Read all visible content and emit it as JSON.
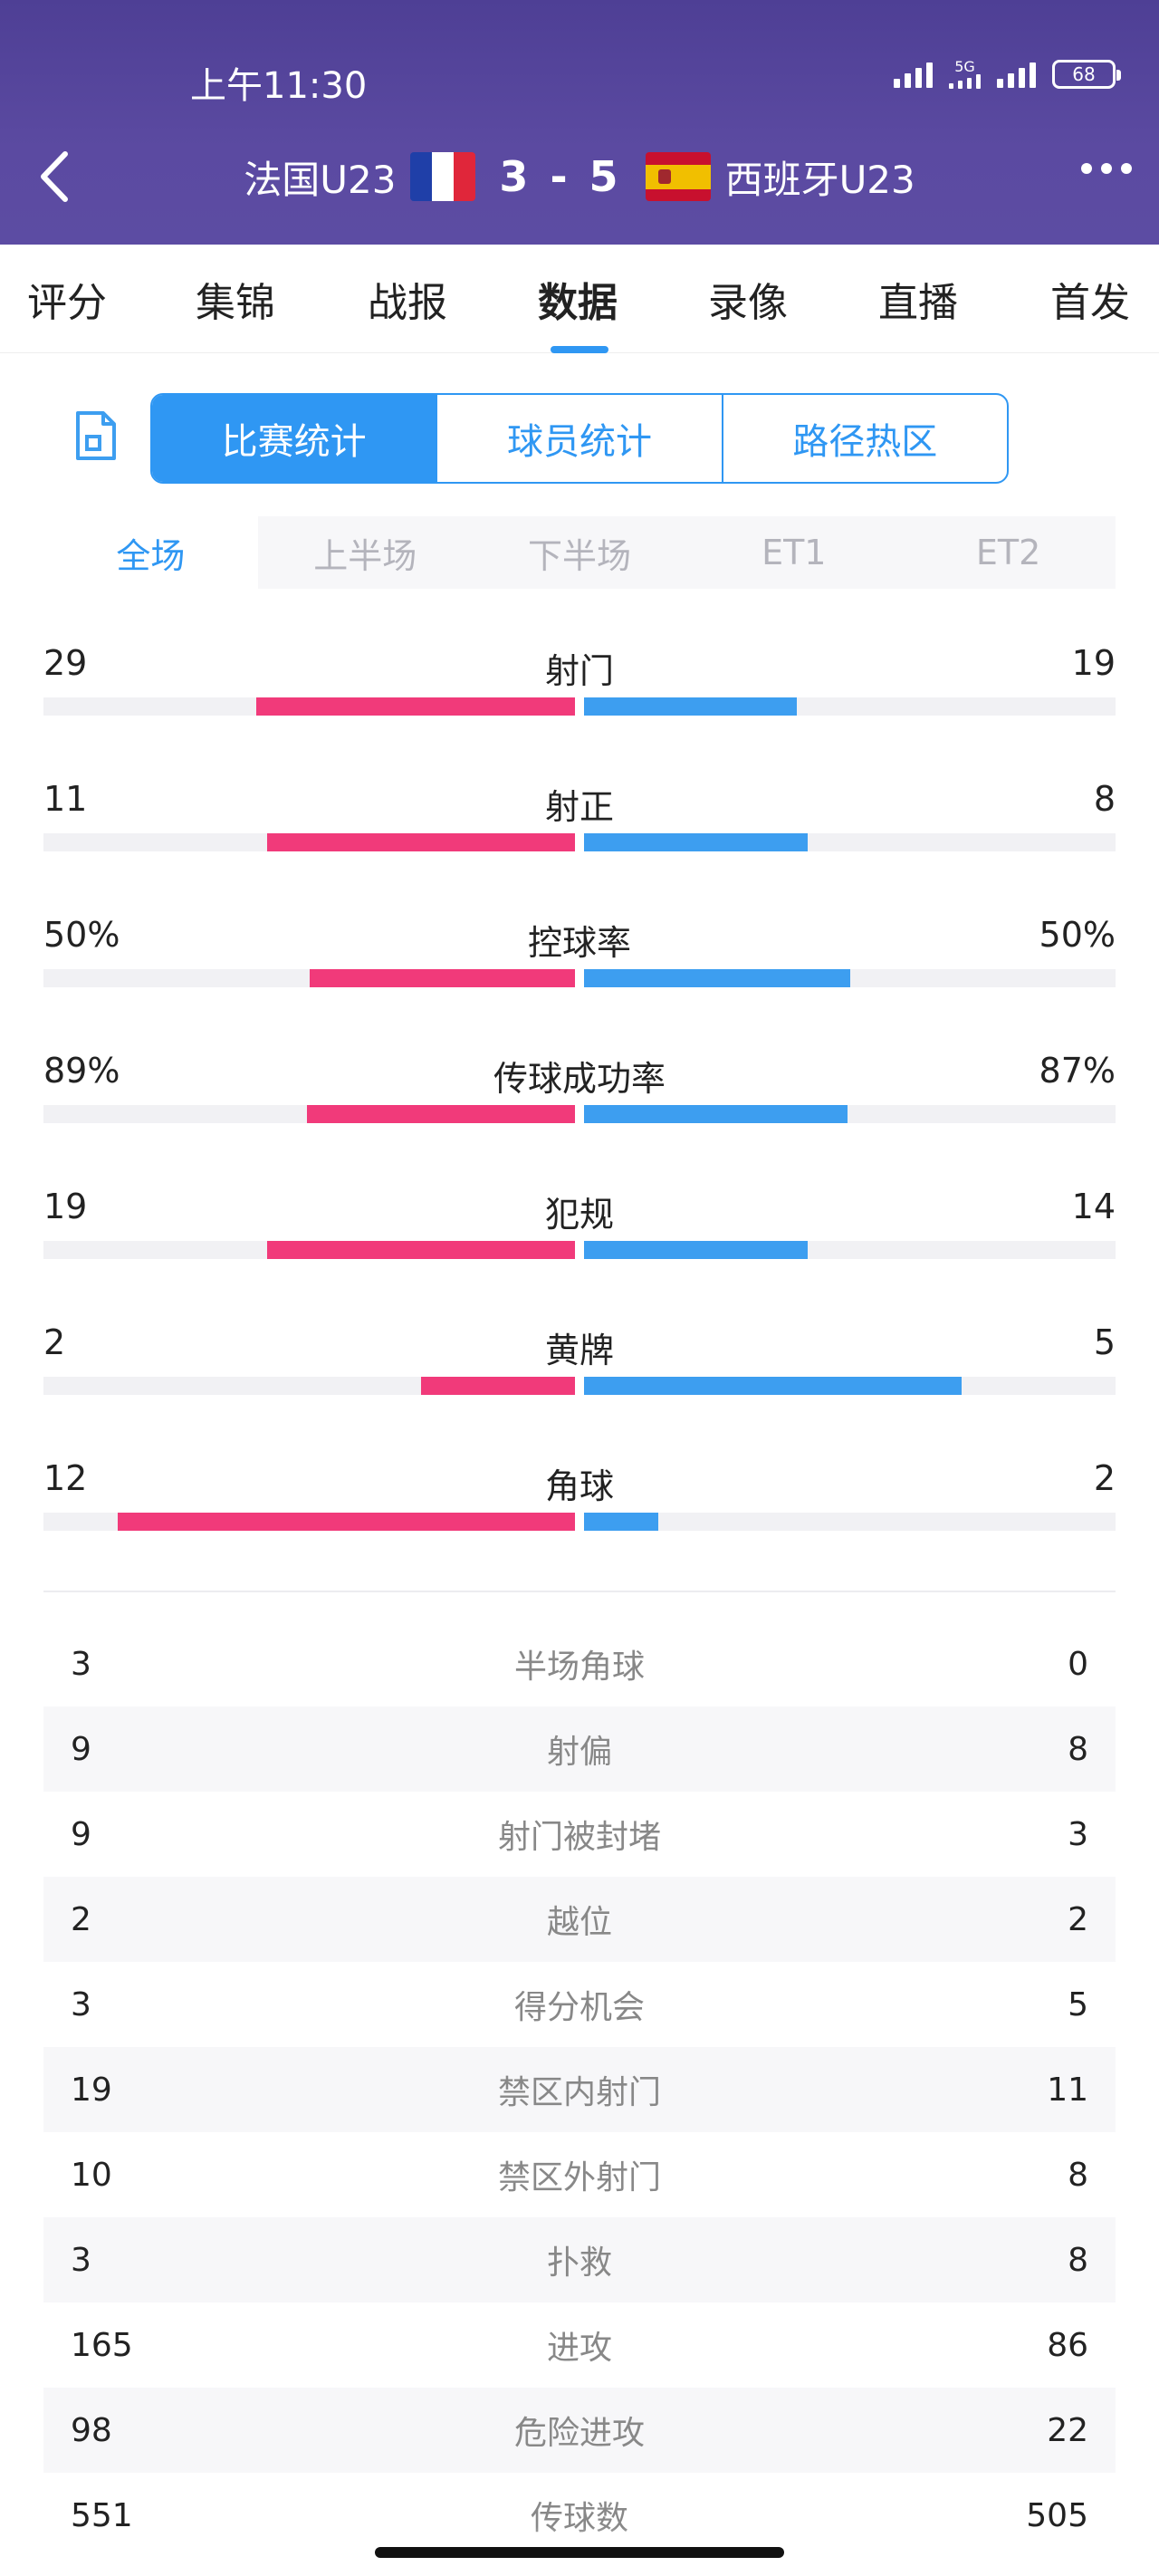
{
  "status": {
    "time": "上午11:30",
    "network": "5G",
    "battery": "68"
  },
  "match": {
    "home": "法国U23",
    "away": "西班牙U23",
    "score": "3 - 5",
    "colors": {
      "primary": "#5b4aa1",
      "accent": "#2f97f3",
      "home_bar": "#f13a7a",
      "away_bar": "#3d9ef0"
    }
  },
  "tabs": [
    "评分",
    "集锦",
    "战报",
    "数据",
    "录像",
    "直播",
    "首发"
  ],
  "active_tab": "数据",
  "segments": [
    "比赛统计",
    "球员统计",
    "路径热区"
  ],
  "periods": [
    "全场",
    "上半场",
    "下半场",
    "ET1",
    "ET2"
  ],
  "bar_stats": [
    {
      "label": "射门",
      "home": "29",
      "away": "19",
      "home_fill": 0.6,
      "away_fill": 0.4
    },
    {
      "label": "射正",
      "home": "11",
      "away": "8",
      "home_fill": 0.58,
      "away_fill": 0.42
    },
    {
      "label": "控球率",
      "home": "50%",
      "away": "50%",
      "home_fill": 0.5,
      "away_fill": 0.5
    },
    {
      "label": "传球成功率",
      "home": "89%",
      "away": "87%",
      "home_fill": 0.505,
      "away_fill": 0.495
    },
    {
      "label": "犯规",
      "home": "19",
      "away": "14",
      "home_fill": 0.58,
      "away_fill": 0.42
    },
    {
      "label": "黄牌",
      "home": "2",
      "away": "5",
      "home_fill": 0.29,
      "away_fill": 0.71
    },
    {
      "label": "角球",
      "home": "12",
      "away": "2",
      "home_fill": 0.86,
      "away_fill": 0.14
    }
  ],
  "table_stats": [
    {
      "label": "半场角球",
      "home": "3",
      "away": "0"
    },
    {
      "label": "射偏",
      "home": "9",
      "away": "8"
    },
    {
      "label": "射门被封堵",
      "home": "9",
      "away": "3"
    },
    {
      "label": "越位",
      "home": "2",
      "away": "2"
    },
    {
      "label": "得分机会",
      "home": "3",
      "away": "5"
    },
    {
      "label": "禁区内射门",
      "home": "19",
      "away": "11"
    },
    {
      "label": "禁区外射门",
      "home": "10",
      "away": "8"
    },
    {
      "label": "扑救",
      "home": "3",
      "away": "8"
    },
    {
      "label": "进攻",
      "home": "165",
      "away": "86"
    },
    {
      "label": "危险进攻",
      "home": "98",
      "away": "22"
    },
    {
      "label": "传球数",
      "home": "551",
      "away": "505"
    }
  ]
}
